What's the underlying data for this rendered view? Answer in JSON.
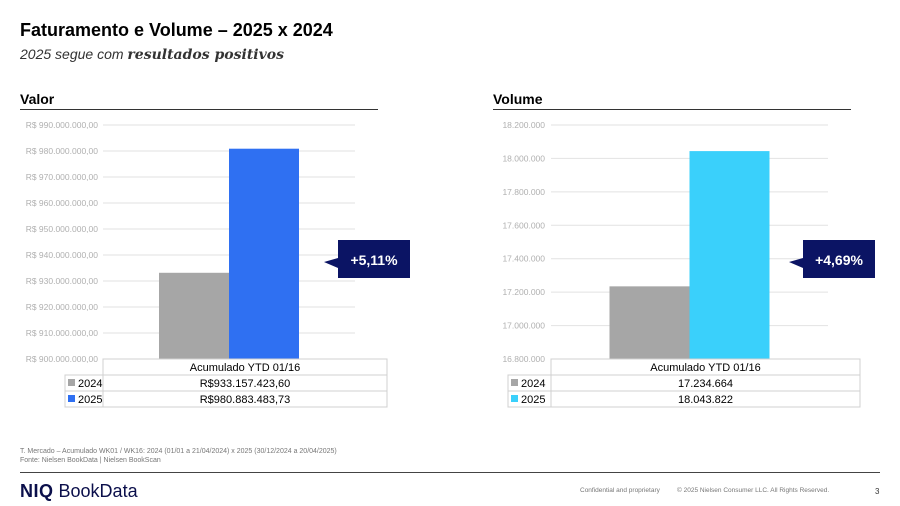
{
  "header": {
    "title": "Faturamento e Volume – 2025 x 2024",
    "subtitle_prefix": "2025 segue com ",
    "subtitle_bold": "resultados positivos"
  },
  "chart_data": [
    {
      "type": "bar",
      "title": "Valor",
      "categories": [
        "Acumulado YTD 01/16"
      ],
      "series": [
        {
          "name": "2024",
          "values": [
            933157423.6
          ],
          "label": "R$933.157.423,60",
          "color": "#a6a6a6"
        },
        {
          "name": "2025",
          "values": [
            980883483.73
          ],
          "label": "R$980.883.483,73",
          "color": "#2f70f2"
        }
      ],
      "ylim": [
        900000000,
        990000000
      ],
      "yticks": [
        900000000,
        910000000,
        920000000,
        930000000,
        940000000,
        950000000,
        960000000,
        970000000,
        980000000,
        990000000
      ],
      "ytick_labels": [
        "R$ 900.000.000,00",
        "R$ 910.000.000,00",
        "R$ 920.000.000,00",
        "R$ 930.000.000,00",
        "R$ 940.000.000,00",
        "R$ 950.000.000,00",
        "R$ 960.000.000,00",
        "R$ 970.000.000,00",
        "R$ 980.000.000,00",
        "R$ 990.000.000,00"
      ],
      "grid": true,
      "legend": "data-table",
      "growth_badge": "+5,11%"
    },
    {
      "type": "bar",
      "title": "Volume",
      "categories": [
        "Acumulado YTD 01/16"
      ],
      "series": [
        {
          "name": "2024",
          "values": [
            17234664
          ],
          "label": "17.234.664",
          "color": "#a6a6a6"
        },
        {
          "name": "2025",
          "values": [
            18043822
          ],
          "label": "18.043.822",
          "color": "#3ad0fb"
        }
      ],
      "ylim": [
        16800000,
        18200000
      ],
      "yticks": [
        16800000,
        17000000,
        17200000,
        17400000,
        17600000,
        17800000,
        18000000,
        18200000
      ],
      "ytick_labels": [
        "16.800.000",
        "17.000.000",
        "17.200.000",
        "17.400.000",
        "17.600.000",
        "17.800.000",
        "18.000.000",
        "18.200.000"
      ],
      "grid": true,
      "legend": "data-table",
      "growth_badge": "+4,69%"
    }
  ],
  "footnotes": {
    "line1": "T. Mercado – Acumulado WK01 / WK16: 2024 (01/01 a 21/04/2024) x 2025 (30/12/2024 a 20/04/2025)",
    "line2": "Fonte: Nielsen BookData | Nielsen BookScan"
  },
  "footer": {
    "logo_niq": "NIQ",
    "logo_text": "BookData",
    "confidential": "Confidential and proprietary",
    "copyright": "© 2025 Nielsen Consumer LLC. All Rights Reserved.",
    "page_number": "3"
  },
  "colors": {
    "badge": "#0b1464",
    "grid": "#e2e2e2",
    "table_border": "#d0d0d0"
  }
}
